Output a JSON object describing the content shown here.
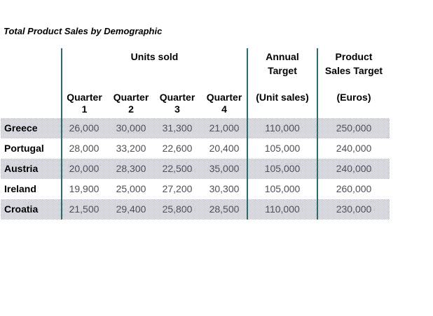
{
  "title": "Total Product Sales by Demographic",
  "colors": {
    "column_divider": "#2c6b6b",
    "value_text": "#4f4f58",
    "stripe_dot": "#aeb2c2",
    "background": "#ffffff"
  },
  "table": {
    "group_headers": {
      "units_sold": "Units sold",
      "annual_line1": "Annual",
      "annual_line2": "Target",
      "product_line1": "Product",
      "product_line2": "Sales Target"
    },
    "column_headers": {
      "q1": {
        "line1": "Quarter",
        "line2": "1"
      },
      "q2": {
        "line1": "Quarter",
        "line2": "2"
      },
      "q3": {
        "line1": "Quarter",
        "line2": "3"
      },
      "q4": {
        "line1": "Quarter",
        "line2": "4"
      },
      "annual_units": "(Unit sales)",
      "product_euros": "(Euros)"
    },
    "rows": [
      {
        "label": "Greece",
        "values": [
          "26,000",
          "30,000",
          "31,300",
          "21,000",
          "110,000",
          "250,000"
        ]
      },
      {
        "label": "Portugal",
        "values": [
          "28,000",
          "33,200",
          "22,600",
          "20,400",
          "105,000",
          "240,000"
        ]
      },
      {
        "label": "Austria",
        "values": [
          "20,000",
          "28,300",
          "22,500",
          "35,000",
          "105,000",
          "240,000"
        ]
      },
      {
        "label": "Ireland",
        "values": [
          "19,900",
          "25,000",
          "27,200",
          "30,300",
          "105,000",
          "260,000"
        ]
      },
      {
        "label": "Croatia",
        "values": [
          "21,500",
          "29,400",
          "25,800",
          "28,500",
          "110,000",
          "230,000"
        ]
      }
    ]
  }
}
